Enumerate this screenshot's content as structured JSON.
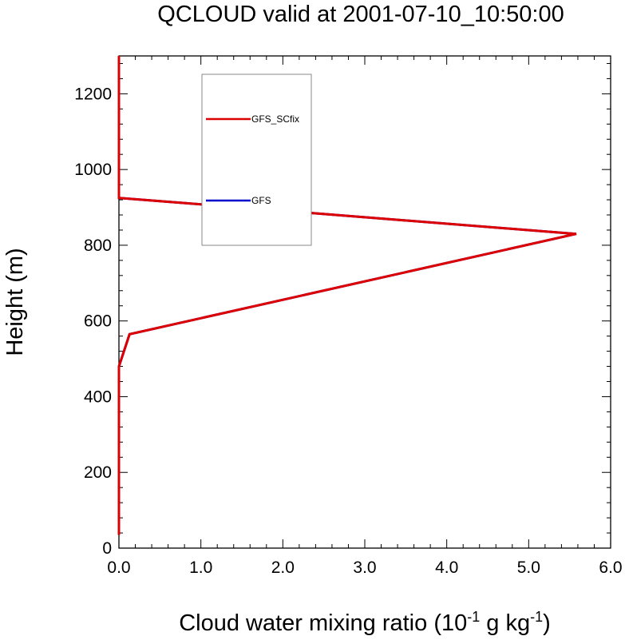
{
  "chart_data": {
    "type": "line",
    "title": "QCLOUD valid at 2001-07-10_10:50:00",
    "xlabel": {
      "main": "Cloud water mixing ratio (10",
      "exp1": "-1",
      "mid": " g kg",
      "exp2": "-1",
      "end": ")"
    },
    "ylabel": "Height (m)",
    "xlim": [
      0,
      6
    ],
    "ylim": [
      0,
      1300
    ],
    "xticks": [
      "0.0",
      "1.0",
      "2.0",
      "3.0",
      "4.0",
      "5.0",
      "6.0"
    ],
    "yticks": [
      "0",
      "200",
      "400",
      "600",
      "800",
      "1000",
      "1200"
    ],
    "legend_placement": "upper-left-center",
    "grid": false,
    "series": [
      {
        "name": "GFS",
        "color": "#0000cc",
        "points": [
          [
            0,
            35
          ],
          [
            0,
            480
          ],
          [
            0.13,
            565
          ],
          [
            5.58,
            830
          ],
          [
            0,
            925
          ],
          [
            0,
            1300
          ]
        ]
      },
      {
        "name": "GFS_SCfix",
        "color": "#dd0000",
        "points": [
          [
            0,
            35
          ],
          [
            0,
            480
          ],
          [
            0.13,
            565
          ],
          [
            5.58,
            830
          ],
          [
            0,
            925
          ],
          [
            0,
            1300
          ]
        ]
      }
    ]
  }
}
